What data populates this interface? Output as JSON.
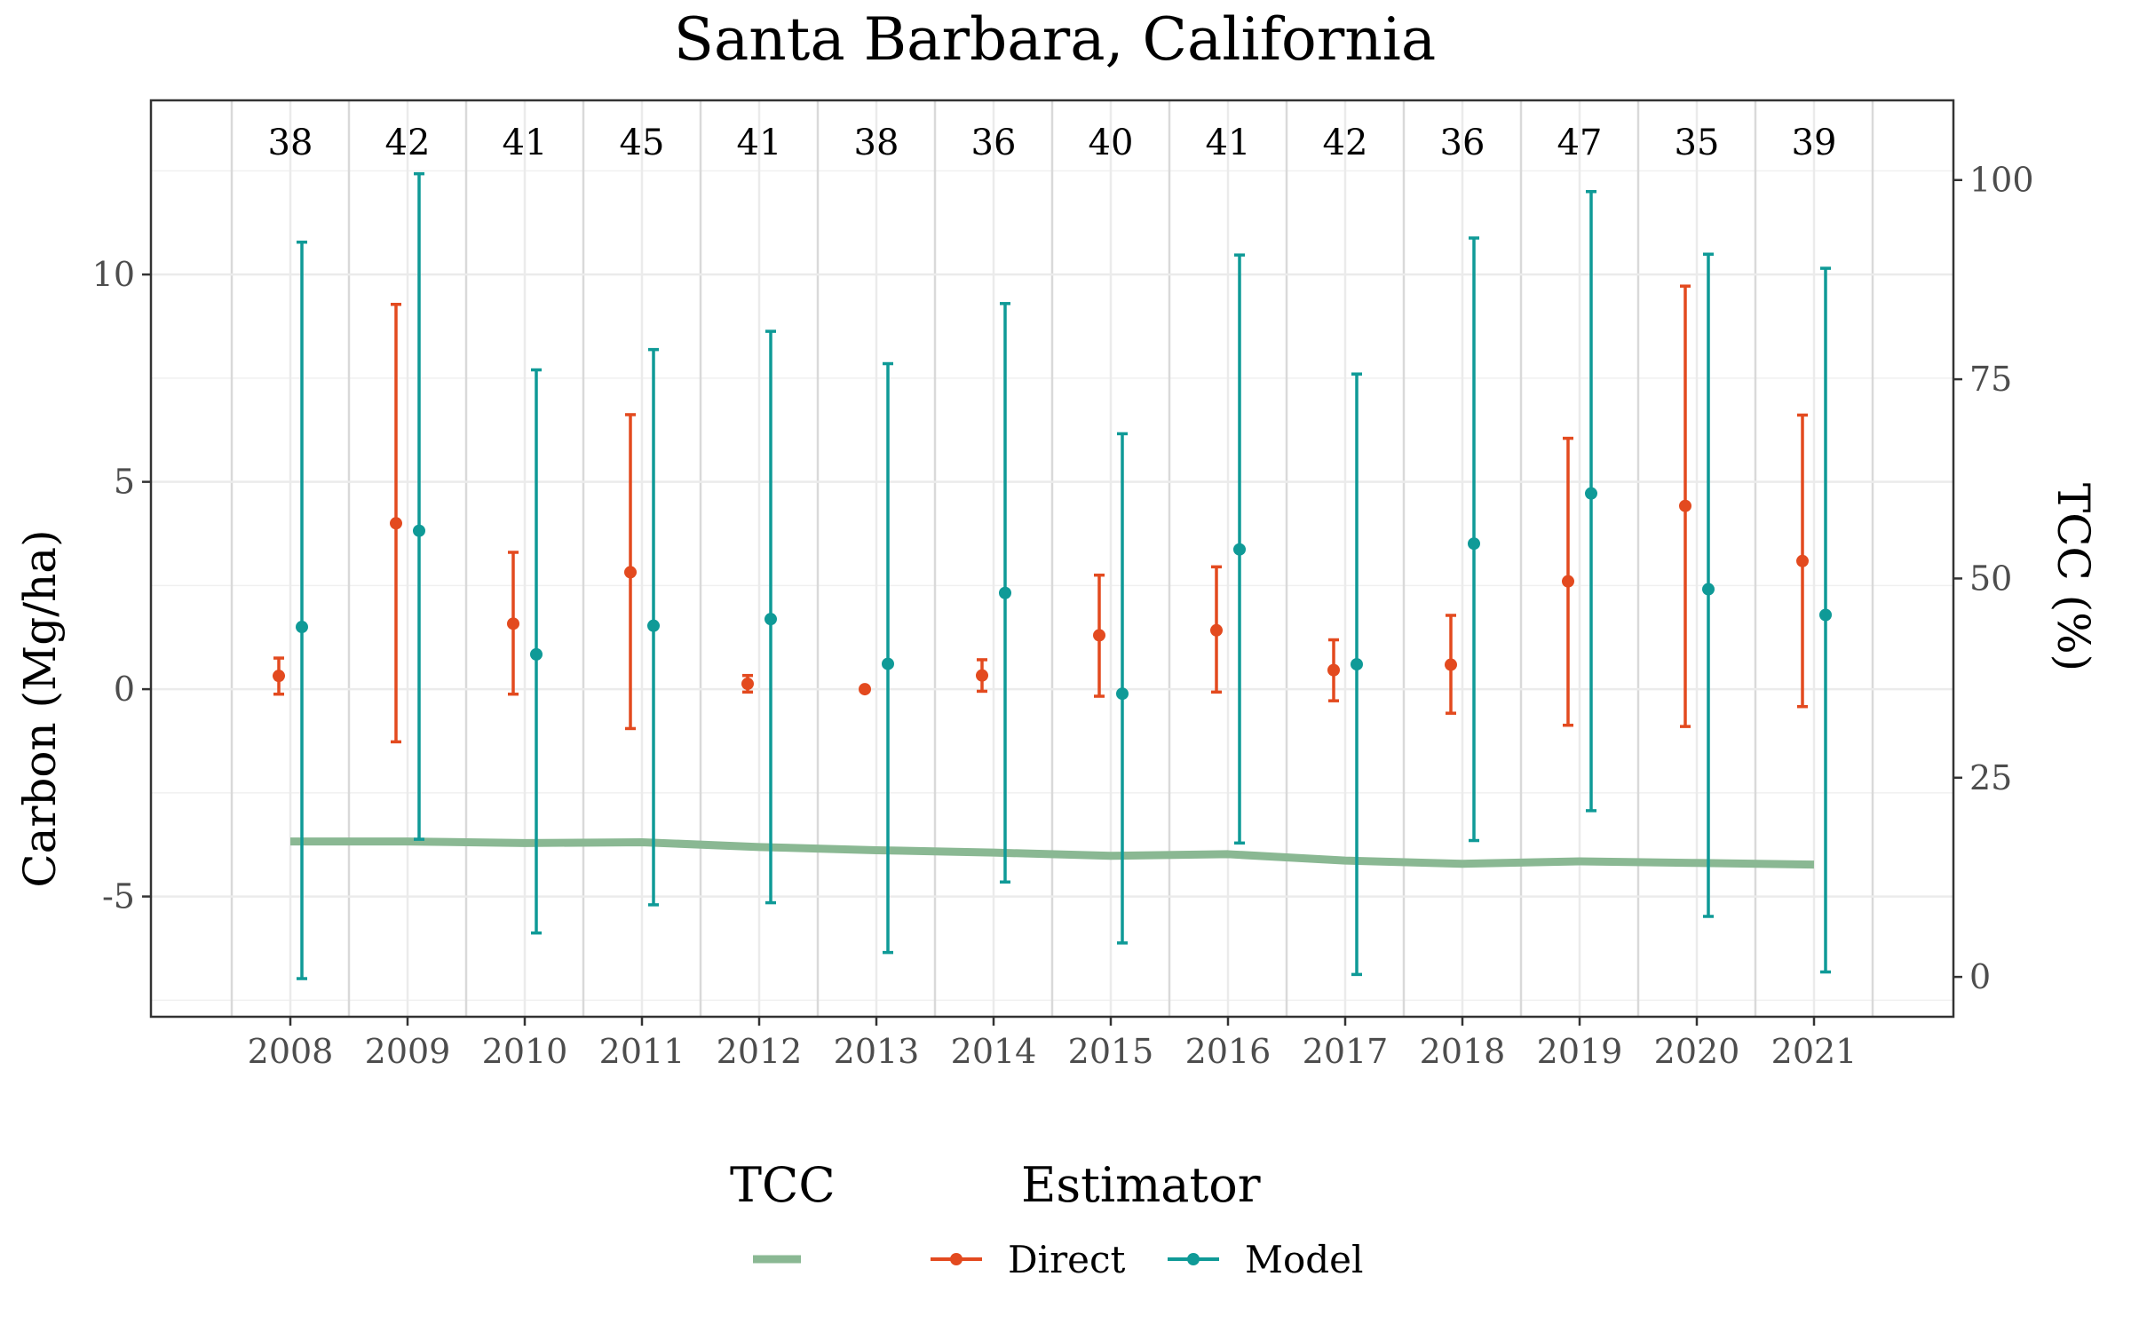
{
  "chart_data": {
    "type": "scatter",
    "title": "Santa Barbara, California",
    "ylabel": "Carbon (Mg/ha)",
    "y2label": "TCC (%)",
    "xlabel": "",
    "categories": [
      "2008",
      "2009",
      "2010",
      "2011",
      "2012",
      "2013",
      "2014",
      "2015",
      "2016",
      "2017",
      "2018",
      "2019",
      "2020",
      "2021"
    ],
    "sample_sizes": [
      "38",
      "42",
      "41",
      "45",
      "41",
      "38",
      "36",
      "40",
      "41",
      "42",
      "36",
      "47",
      "35",
      "39"
    ],
    "ylim": [
      -7.9,
      14.2
    ],
    "yticks": [
      -5,
      0,
      5,
      10
    ],
    "ytick_labels": [
      "-5",
      "0",
      "5",
      "10"
    ],
    "y2lim": [
      -5,
      110
    ],
    "y2ticks": [
      0,
      25,
      50,
      75,
      100
    ],
    "y2tick_labels": [
      "0",
      "25",
      "50",
      "75",
      "100"
    ],
    "grid": true,
    "legend_placement": "bottom",
    "series": [
      {
        "name": "Direct",
        "color": "#E34A1F",
        "y": [
          0.32,
          4.0,
          1.58,
          2.82,
          0.13,
          0.0,
          0.33,
          1.3,
          1.42,
          0.46,
          0.59,
          2.6,
          4.42,
          3.09
        ],
        "lower": [
          -0.12,
          -1.27,
          -0.12,
          -0.95,
          -0.07,
          0.0,
          -0.05,
          -0.17,
          -0.07,
          -0.28,
          -0.58,
          -0.87,
          -0.9,
          -0.42
        ],
        "upper": [
          0.75,
          9.28,
          3.3,
          6.62,
          0.33,
          0.0,
          0.71,
          2.75,
          2.95,
          1.19,
          1.78,
          6.05,
          9.72,
          6.61
        ]
      },
      {
        "name": "Model",
        "color": "#0F9A97",
        "y": [
          1.5,
          3.82,
          0.84,
          1.53,
          1.69,
          0.61,
          2.32,
          -0.11,
          3.37,
          0.6,
          3.51,
          4.72,
          2.41,
          1.79
        ],
        "lower": [
          -6.98,
          -3.62,
          -5.88,
          -5.2,
          -5.15,
          -6.35,
          -4.65,
          -6.12,
          -3.71,
          -6.88,
          -3.65,
          -2.93,
          -5.48,
          -6.82
        ],
        "upper": [
          10.78,
          12.43,
          7.7,
          8.19,
          8.63,
          7.85,
          9.3,
          6.16,
          10.47,
          7.6,
          10.88,
          12.0,
          10.49,
          10.15
        ]
      }
    ],
    "tcc": {
      "name": "TCC",
      "color": "#8AB893",
      "values": [
        17.0,
        17.0,
        16.8,
        16.9,
        16.3,
        15.9,
        15.6,
        15.2,
        15.4,
        14.6,
        14.2,
        14.5,
        14.3,
        14.1
      ]
    },
    "legend": {
      "tcc_title": "TCC",
      "estimator_title": "Estimator",
      "items": [
        "Direct",
        "Model"
      ]
    }
  }
}
